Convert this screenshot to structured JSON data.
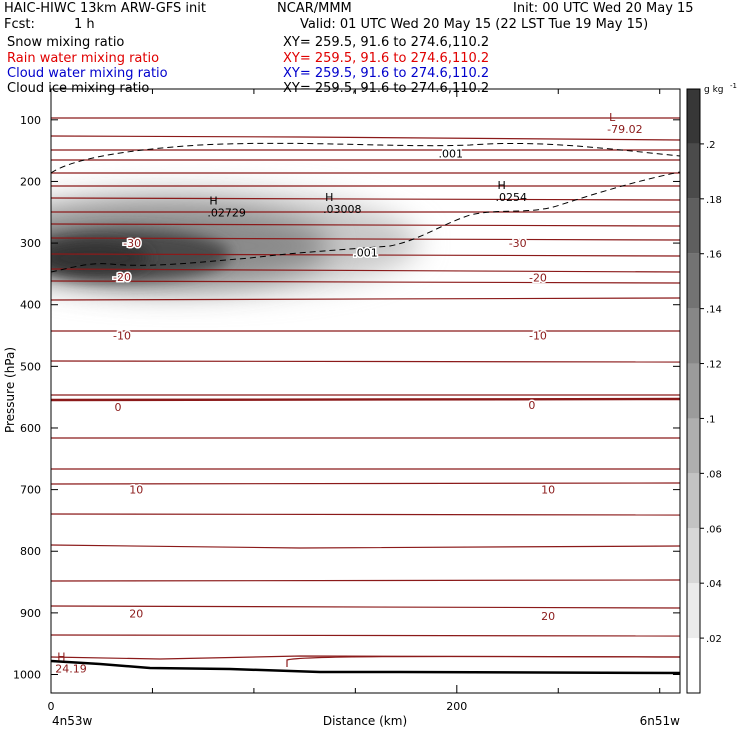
{
  "header": {
    "title_left": "HAIC-HIWC 13km ARW-GFS init",
    "title_mid": "NCAR/MMM",
    "init": "Init: 00 UTC Wed 20 May 15",
    "fcst_label": "Fcst:",
    "fcst_value": "1 h",
    "valid": "Valid: 01 UTC Wed 20 May 15 (22 LST Tue 19 May 15)"
  },
  "fields": [
    {
      "name": "Snow mixing ratio",
      "xy": "XY= 259.5, 91.6 to 274.6,110.2",
      "color": "#000000"
    },
    {
      "name": "Rain water mixing ratio",
      "xy": "XY= 259.5, 91.6 to 274.6,110.2",
      "color": "#e00000"
    },
    {
      "name": "Cloud water mixing ratio",
      "xy": "XY= 259.5, 91.6 to 274.6,110.2",
      "color": "#0000cc"
    },
    {
      "name": "Cloud ice mixing ratio",
      "xy": "XY= 259.5, 91.6 to 274.6,110.2",
      "color": "#000000"
    }
  ],
  "chart_data": {
    "type": "contour",
    "xlabel": "Distance (km)",
    "ylabel": "Pressure (hPa)",
    "x_ticks": [
      0,
      200
    ],
    "x_range": [
      0,
      310
    ],
    "y_ticks": [
      100,
      200,
      300,
      400,
      500,
      600,
      700,
      800,
      900,
      1000
    ],
    "y_range": [
      50,
      1030
    ],
    "x_endpoints": {
      "left": "4n53w",
      "right": "6n51w"
    },
    "colorbar": {
      "unit": "g kg",
      "unit_exp": "-1",
      "ticks": [
        ".02",
        ".04",
        ".06",
        ".08",
        ".1",
        ".12",
        ".14",
        ".16",
        ".18",
        ".2"
      ],
      "tick_values": [
        0.02,
        0.04,
        0.06,
        0.08,
        0.1,
        0.12,
        0.14,
        0.16,
        0.18,
        0.2
      ],
      "range": [
        0,
        0.22
      ]
    },
    "temperature_contour_labels": [
      {
        "x": 40,
        "p": 300,
        "label": "-30"
      },
      {
        "x": 230,
        "p": 300,
        "label": "-30"
      },
      {
        "x": 35,
        "p": 355,
        "label": "-20"
      },
      {
        "x": 240,
        "p": 356,
        "label": "-20"
      },
      {
        "x": 35,
        "p": 450,
        "label": "-10"
      },
      {
        "x": 240,
        "p": 450,
        "label": "-10"
      },
      {
        "x": 33,
        "p": 566,
        "label": "0"
      },
      {
        "x": 237,
        "p": 563,
        "label": "0"
      },
      {
        "x": 42,
        "p": 700,
        "label": "10"
      },
      {
        "x": 245,
        "p": 700,
        "label": "10"
      },
      {
        "x": 42,
        "p": 901,
        "label": "20"
      },
      {
        "x": 245,
        "p": 905,
        "label": "20"
      }
    ],
    "extrema": [
      {
        "type": "H",
        "value": ".02729",
        "x": 83,
        "p": 250
      },
      {
        "type": "H",
        "value": ".03008",
        "x": 140,
        "p": 245
      },
      {
        "type": "H",
        "value": ".0254",
        "x": 225,
        "p": 225
      },
      {
        "type": "L",
        "value": "-79.02",
        "x": 280,
        "p": 115
      },
      {
        "type": "H",
        "value": "24.19",
        "x": 8,
        "p": 990
      }
    ],
    "cloud_ice_contour_labels": [
      {
        "x": 197,
        "p": 155,
        "label": ".001"
      },
      {
        "x": 155,
        "p": 315,
        "label": ".001"
      }
    ]
  }
}
